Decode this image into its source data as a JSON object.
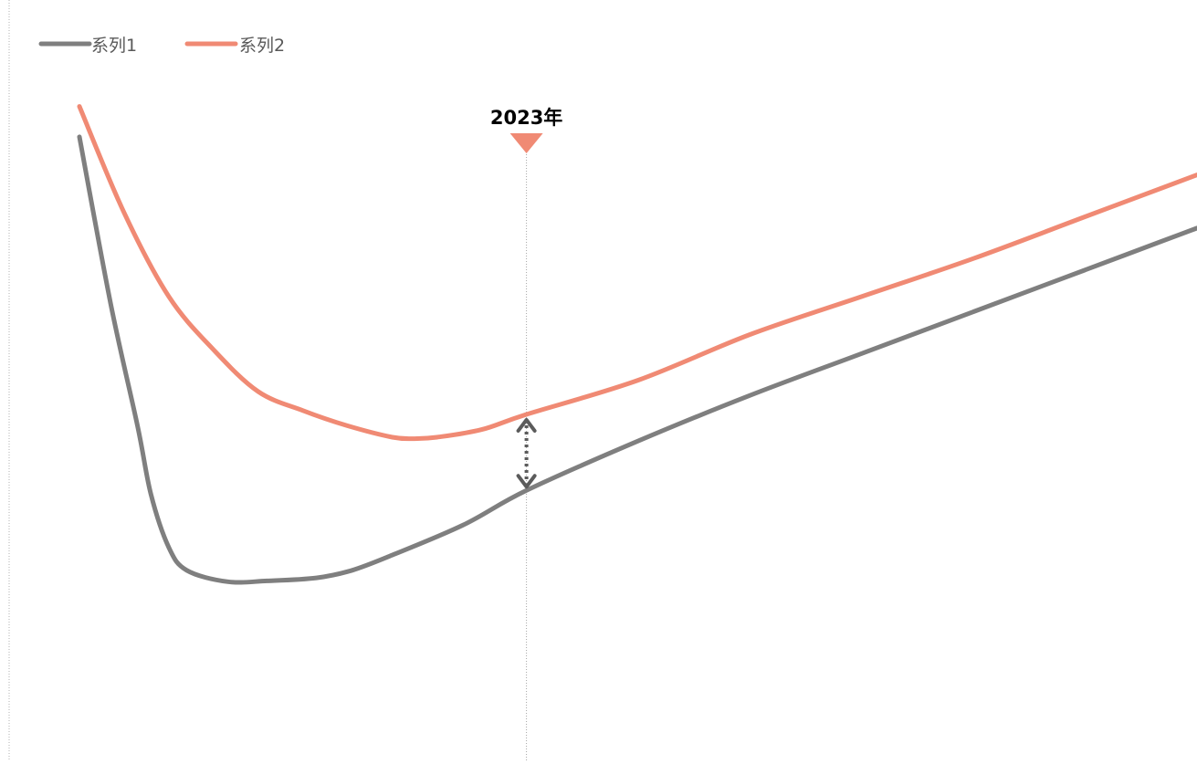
{
  "chart_data": {
    "type": "line",
    "title": "",
    "xlabel": "",
    "ylabel": "",
    "grid": false,
    "legend_position": "top-left",
    "annotation": {
      "label": "2023年",
      "marker_color": "#F08A74",
      "arrow_color": "#5B5B5B"
    },
    "series": [
      {
        "name": "系列1",
        "color": "#7F7F7F",
        "values": [
          [
            0.0,
            82
          ],
          [
            0.07,
            60
          ],
          [
            0.13,
            44
          ],
          [
            0.16,
            35
          ],
          [
            0.2,
            28
          ],
          [
            0.24,
            25
          ],
          [
            0.33,
            23.5
          ],
          [
            0.42,
            23.6
          ],
          [
            0.53,
            24
          ],
          [
            0.61,
            25
          ],
          [
            0.7,
            27
          ],
          [
            0.86,
            31
          ],
          [
            1.0,
            35.5
          ],
          [
            1.25,
            42
          ],
          [
            1.5,
            48
          ],
          [
            1.75,
            53.5
          ],
          [
            2.0,
            59
          ],
          [
            2.25,
            64.5
          ],
          [
            2.5,
            70
          ]
        ]
      },
      {
        "name": "系列2",
        "color": "#F08A74",
        "values": [
          [
            0.0,
            86
          ],
          [
            0.1,
            72
          ],
          [
            0.2,
            61
          ],
          [
            0.3,
            54
          ],
          [
            0.4,
            48.5
          ],
          [
            0.5,
            46
          ],
          [
            0.6,
            44
          ],
          [
            0.7,
            42.5
          ],
          [
            0.75,
            42.3
          ],
          [
            0.8,
            42.5
          ],
          [
            0.9,
            43.5
          ],
          [
            1.0,
            45.5
          ],
          [
            1.25,
            50
          ],
          [
            1.5,
            56
          ],
          [
            1.75,
            61
          ],
          [
            2.0,
            66
          ],
          [
            2.25,
            71.5
          ],
          [
            2.5,
            77
          ]
        ]
      }
    ],
    "annotation_x": 1.0,
    "xlim": [
      0,
      2.5
    ],
    "ylim": [
      0,
      100
    ]
  }
}
